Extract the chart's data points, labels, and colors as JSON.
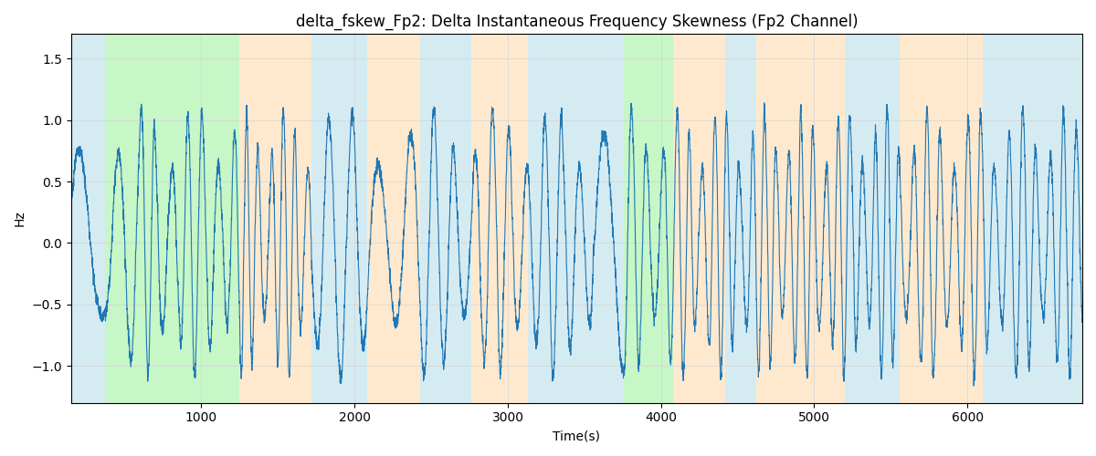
{
  "title": "delta_fskew_Fp2: Delta Instantaneous Frequency Skewness (Fp2 Channel)",
  "xlabel": "Time(s)",
  "ylabel": "Hz",
  "xlim": [
    150,
    6750
  ],
  "ylim": [
    -1.3,
    1.7
  ],
  "yticks": [
    -1.0,
    -0.5,
    0.0,
    0.5,
    1.0,
    1.5
  ],
  "xticks": [
    1000,
    2000,
    3000,
    4000,
    5000,
    6000
  ],
  "line_color": "#1f77b4",
  "line_width": 0.8,
  "bg_bands": [
    {
      "xmin": 150,
      "xmax": 370,
      "color": "#add8e6",
      "alpha": 0.5
    },
    {
      "xmin": 370,
      "xmax": 1250,
      "color": "#90ee90",
      "alpha": 0.5
    },
    {
      "xmin": 1250,
      "xmax": 1720,
      "color": "#ffd59e",
      "alpha": 0.5
    },
    {
      "xmin": 1720,
      "xmax": 2080,
      "color": "#add8e6",
      "alpha": 0.5
    },
    {
      "xmin": 2080,
      "xmax": 2430,
      "color": "#ffd59e",
      "alpha": 0.5
    },
    {
      "xmin": 2430,
      "xmax": 2760,
      "color": "#add8e6",
      "alpha": 0.5
    },
    {
      "xmin": 2760,
      "xmax": 3130,
      "color": "#ffd59e",
      "alpha": 0.5
    },
    {
      "xmin": 3130,
      "xmax": 3560,
      "color": "#add8e6",
      "alpha": 0.5
    },
    {
      "xmin": 3560,
      "xmax": 3760,
      "color": "#add8e6",
      "alpha": 0.5
    },
    {
      "xmin": 3760,
      "xmax": 4080,
      "color": "#90ee90",
      "alpha": 0.5
    },
    {
      "xmin": 4080,
      "xmax": 4420,
      "color": "#ffd59e",
      "alpha": 0.5
    },
    {
      "xmin": 4420,
      "xmax": 4620,
      "color": "#add8e6",
      "alpha": 0.5
    },
    {
      "xmin": 4620,
      "xmax": 5200,
      "color": "#ffd59e",
      "alpha": 0.5
    },
    {
      "xmin": 5200,
      "xmax": 5560,
      "color": "#add8e6",
      "alpha": 0.5
    },
    {
      "xmin": 5560,
      "xmax": 6100,
      "color": "#ffd59e",
      "alpha": 0.5
    },
    {
      "xmin": 6100,
      "xmax": 6750,
      "color": "#add8e6",
      "alpha": 0.5
    }
  ],
  "seed": 42,
  "n_points": 6600,
  "t_start": 150,
  "t_end": 6750
}
